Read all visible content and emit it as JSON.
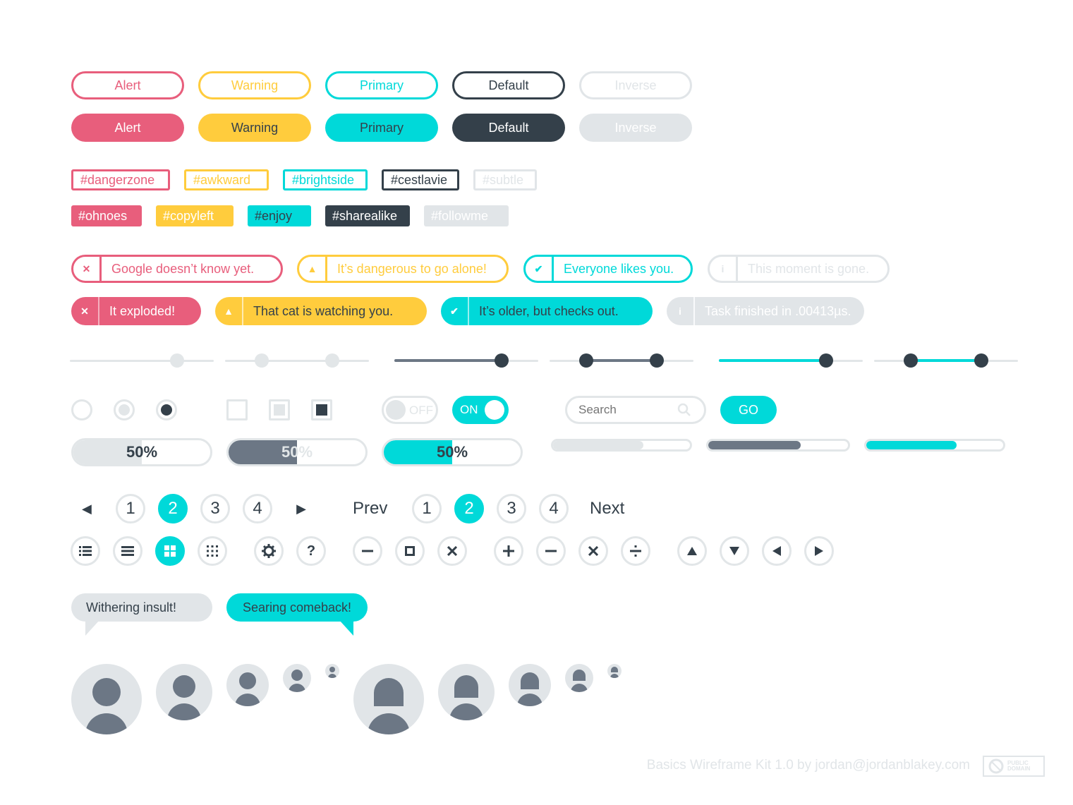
{
  "colors": {
    "alert": "#e85e7c",
    "warning": "#ffcc3d",
    "primary": "#00d9d9",
    "default": "#34404a",
    "inverse": "#e1e5e8",
    "muted": "#6c7785"
  },
  "buttons": {
    "outline": [
      "Alert",
      "Warning",
      "Primary",
      "Default",
      "Inverse"
    ],
    "solid": [
      "Alert",
      "Warning",
      "Primary",
      "Default",
      "Inverse"
    ]
  },
  "tags": {
    "outline": [
      "#dangerzone",
      "#awkward",
      "#brightside",
      "#cestlavie",
      "#subtle"
    ],
    "solid": [
      "#ohnoes",
      "#copyleft",
      "#enjoy",
      "#sharealike",
      "#followme"
    ]
  },
  "alerts": {
    "outline": [
      "Google doesn’t know yet.",
      "It’s dangerous to go alone!",
      "Everyone likes you.",
      "This moment is gone."
    ],
    "solid": [
      "It exploded!",
      "That cat is watching you.",
      "It’s older, but checks out.",
      "Task finished in .00413µs."
    ],
    "icons": [
      "close-icon",
      "warning-icon",
      "check-icon",
      "info-icon"
    ]
  },
  "toggles": {
    "off_label": "OFF",
    "on_label": "ON"
  },
  "search": {
    "placeholder": "Search",
    "go_label": "GO"
  },
  "progress": {
    "value": 0.5,
    "label": "50%",
    "thin_value": 0.66
  },
  "pagination": {
    "numbers": [
      "1",
      "2",
      "3",
      "4"
    ],
    "active": "2",
    "prev_label": "Prev",
    "next_label": "Next"
  },
  "bubbles": {
    "left": "Withering insult!",
    "right": "Searing comeback!"
  },
  "footer": {
    "credit": "Basics Wireframe Kit 1.0 by jordan@jordanblakey.com",
    "license": "PUBLIC DOMAIN"
  }
}
